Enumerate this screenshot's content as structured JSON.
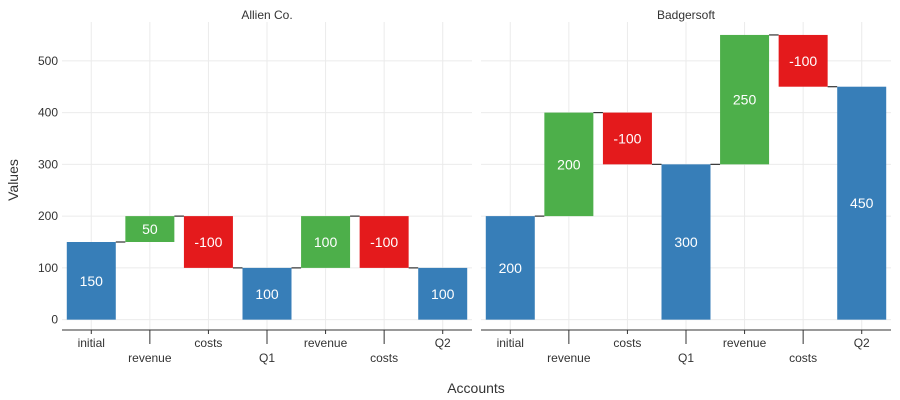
{
  "chart_data": {
    "type": "bar",
    "subtype": "waterfall",
    "xlabel": "Accounts",
    "ylabel": "Values",
    "ylim": [
      -20,
      575
    ],
    "yticks": [
      0,
      100,
      200,
      300,
      400,
      500
    ],
    "grid": true,
    "colors": {
      "total": "#377EB8",
      "increase": "#4DAF4A",
      "decrease": "#E41A1C"
    },
    "panels": [
      {
        "title": "Allien Co.",
        "categories": [
          "initial",
          "revenue",
          "costs",
          "Q1",
          "revenue",
          "costs",
          "Q2"
        ],
        "bars": [
          {
            "kind": "total",
            "start": 0,
            "end": 150,
            "label": "150"
          },
          {
            "kind": "increase",
            "start": 150,
            "end": 200,
            "label": "50"
          },
          {
            "kind": "decrease",
            "start": 200,
            "end": 100,
            "label": "-100"
          },
          {
            "kind": "total",
            "start": 0,
            "end": 100,
            "label": "100"
          },
          {
            "kind": "increase",
            "start": 100,
            "end": 200,
            "label": "100"
          },
          {
            "kind": "decrease",
            "start": 200,
            "end": 100,
            "label": "-100"
          },
          {
            "kind": "total",
            "start": 0,
            "end": 100,
            "label": "100"
          }
        ]
      },
      {
        "title": "Badgersoft",
        "categories": [
          "initial",
          "revenue",
          "costs",
          "Q1",
          "revenue",
          "costs",
          "Q2"
        ],
        "bars": [
          {
            "kind": "total",
            "start": 0,
            "end": 200,
            "label": "200"
          },
          {
            "kind": "increase",
            "start": 200,
            "end": 400,
            "label": "200"
          },
          {
            "kind": "decrease",
            "start": 400,
            "end": 300,
            "label": "-100"
          },
          {
            "kind": "total",
            "start": 0,
            "end": 300,
            "label": "300"
          },
          {
            "kind": "increase",
            "start": 300,
            "end": 550,
            "label": "250"
          },
          {
            "kind": "decrease",
            "start": 550,
            "end": 450,
            "label": "-100"
          },
          {
            "kind": "total",
            "start": 0,
            "end": 450,
            "label": "450"
          }
        ]
      }
    ]
  }
}
